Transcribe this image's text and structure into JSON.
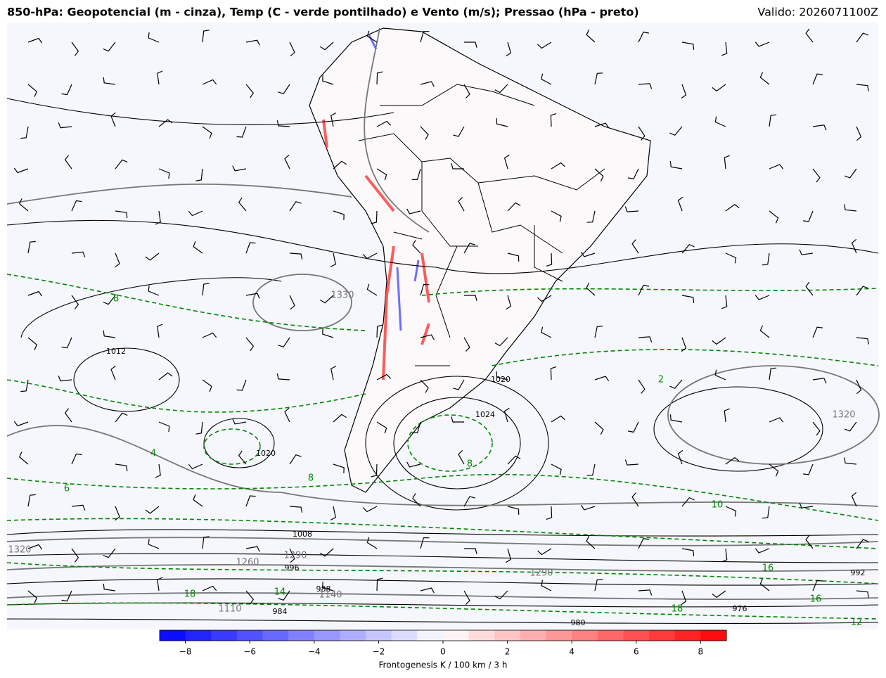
{
  "header": {
    "title": "850-hPa: Geopotencial (m - cinza), Temp (C - verde pontilhado) e Vento (m/s); Pressao (hPa - preto)",
    "valid": "Valido: 2026071100Z"
  },
  "map": {
    "pressure_labels": [
      "1012",
      "1020",
      "1024",
      "1020",
      "1008",
      "996",
      "988",
      "984",
      "980",
      "976",
      "992"
    ],
    "geopotential_labels": [
      "1330",
      "1320",
      "1260",
      "1290",
      "1110",
      "1140",
      "1320",
      "1290"
    ],
    "temperature_labels": [
      "8",
      "6",
      "4",
      "8",
      "8",
      "10",
      "18",
      "16",
      "18",
      "16",
      "12",
      "14",
      "2"
    ]
  },
  "colorbar": {
    "label": "Frontogenesis K / 100 km / 3 h",
    "lim": [
      -8.8,
      8.8
    ],
    "bounds": [
      -8.8,
      -8,
      -7.2,
      -6.4,
      -5.6,
      -4.8,
      -4,
      -3.2,
      -2.4,
      -1.6,
      -0.8,
      0,
      0.8,
      1.6,
      2.4,
      3.2,
      4,
      4.8,
      5.6,
      6.4,
      7.2,
      8,
      8.8
    ],
    "ticks": [
      {
        "value": -8,
        "label": "−8"
      },
      {
        "value": -6,
        "label": "−6"
      },
      {
        "value": -4,
        "label": "−4"
      },
      {
        "value": -2,
        "label": "−2"
      },
      0,
      2,
      4,
      6,
      8
    ],
    "cmap": [
      "#0000ff",
      "#ffffff",
      "#ff0000"
    ]
  }
}
